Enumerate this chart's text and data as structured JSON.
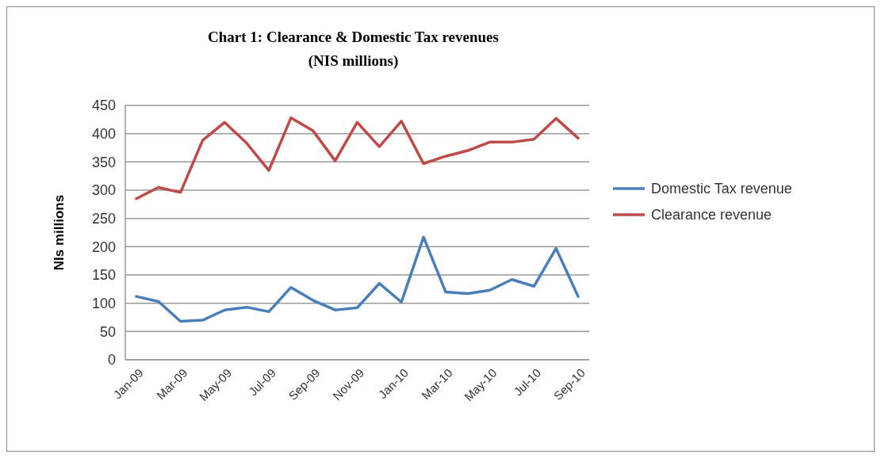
{
  "chart_data": {
    "type": "line",
    "title": "Chart 1: Clearance & Domestic Tax revenues (NIS millions)",
    "ylabel": "NIs millions",
    "categories": [
      "Jan-09",
      null,
      "Mar-09",
      null,
      "May-09",
      null,
      "Jul-09",
      null,
      "Sep-09",
      null,
      "Nov-09",
      null,
      "Jan-10",
      null,
      "Mar-10",
      null,
      "May-10",
      null,
      "Jul-10",
      null,
      "Sep-10"
    ],
    "series": [
      {
        "name": "Domestic Tax revenue",
        "color": "#4a7ebb",
        "values": [
          112,
          103,
          68,
          70,
          88,
          93,
          85,
          128,
          105,
          88,
          92,
          135,
          102,
          217,
          120,
          117,
          123,
          142,
          130,
          197,
          112
        ]
      },
      {
        "name": "Clearance revenue",
        "color": "#be4b48",
        "values": [
          285,
          305,
          296,
          388,
          420,
          383,
          335,
          428,
          405,
          352,
          420,
          377,
          422,
          347,
          360,
          370,
          385,
          385,
          390,
          427,
          392
        ]
      }
    ],
    "ylim": [
      0,
      450
    ],
    "yticks": [
      0,
      50,
      100,
      150,
      200,
      250,
      300,
      350,
      400,
      450
    ],
    "grid": "y",
    "legend": "right",
    "marker": "none",
    "line_style": "solid"
  }
}
